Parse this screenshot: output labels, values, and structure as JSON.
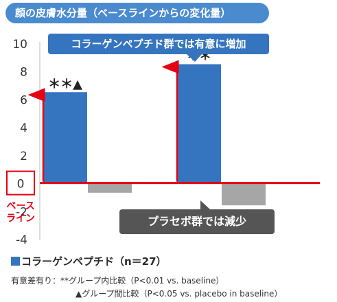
{
  "title": "顔の皮膚水分量（ベースラインからの変化量）",
  "chart_data": {
    "type": "bar",
    "categories": [
      "",
      ""
    ],
    "series": [
      {
        "name": "コラーゲンペプチド（n＝27）",
        "values": [
          6.5,
          8.5
        ],
        "color": "#3575bf"
      },
      {
        "name": "プラセボ",
        "values": [
          -0.7,
          -1.6
        ],
        "color": "#a6a6a6"
      }
    ],
    "ylim": [
      -4,
      10
    ],
    "yticks": [
      "-4",
      "-2",
      "0",
      "2",
      "4",
      "6",
      "8",
      "10"
    ],
    "baseline_label": "ベース\nライン",
    "grid": false,
    "data_labels": [
      "＊＊▲",
      "＊＊"
    ],
    "accent_color": "#e60012",
    "placebo_color": "#a6a6a6"
  },
  "callouts": {
    "collagen": "コラーゲンペプチド群では有意に増加",
    "placebo": "プラセボ群では減少"
  },
  "legend": {
    "label": "コラーゲンペプチド（n＝27）"
  },
  "notes": {
    "line1": "有意差有り：**グループ内比較（P<0.01 vs. baseline）",
    "line2": "▲グループ間比較（P<0.05 vs. placebo in baseline）"
  }
}
